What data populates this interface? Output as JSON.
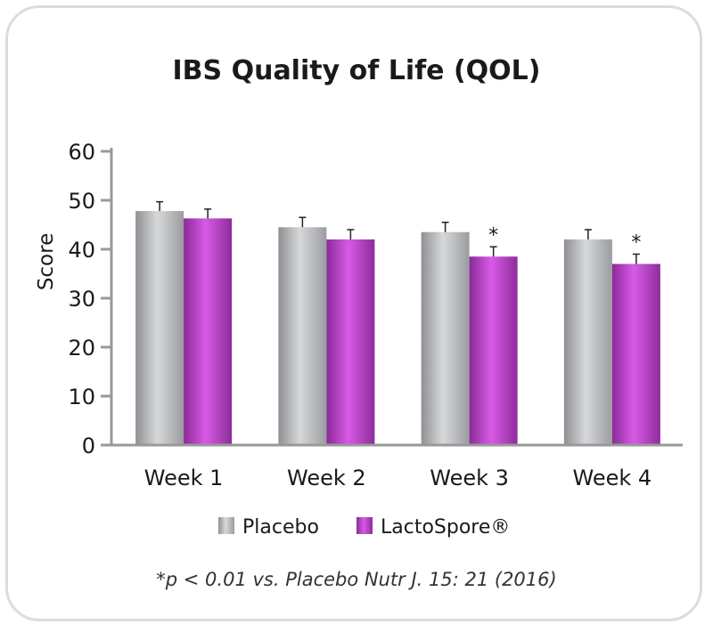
{
  "chart_data": {
    "type": "bar",
    "title": "IBS Quality of Life (QOL)",
    "ylabel": "Score",
    "xlabel": "",
    "ylim": [
      0,
      60
    ],
    "yticks": [
      "0",
      "10",
      "20",
      "30",
      "40",
      "50",
      "60"
    ],
    "categories": [
      "Week 1",
      "Week 2",
      "Week 3",
      "Week 4"
    ],
    "series": [
      {
        "name": "Placebo",
        "values": [
          47.8,
          44.5,
          43.5,
          42.0
        ],
        "errors": [
          1.9,
          2.0,
          2.0,
          2.0
        ]
      },
      {
        "name": "LactoSpore®",
        "values": [
          46.3,
          42.0,
          38.5,
          37.0
        ],
        "errors": [
          1.9,
          2.0,
          2.0,
          2.0
        ]
      }
    ],
    "significance": [
      "",
      "",
      "*",
      "*"
    ],
    "legend_position": "bottom",
    "grid": false,
    "footnote": "*p < 0.01 vs. Placebo Nutr J. 15: 21 (2016)",
    "colors": {
      "Placebo": "#b5b7b9",
      "LactoSpore®": "#a93ab7"
    }
  }
}
